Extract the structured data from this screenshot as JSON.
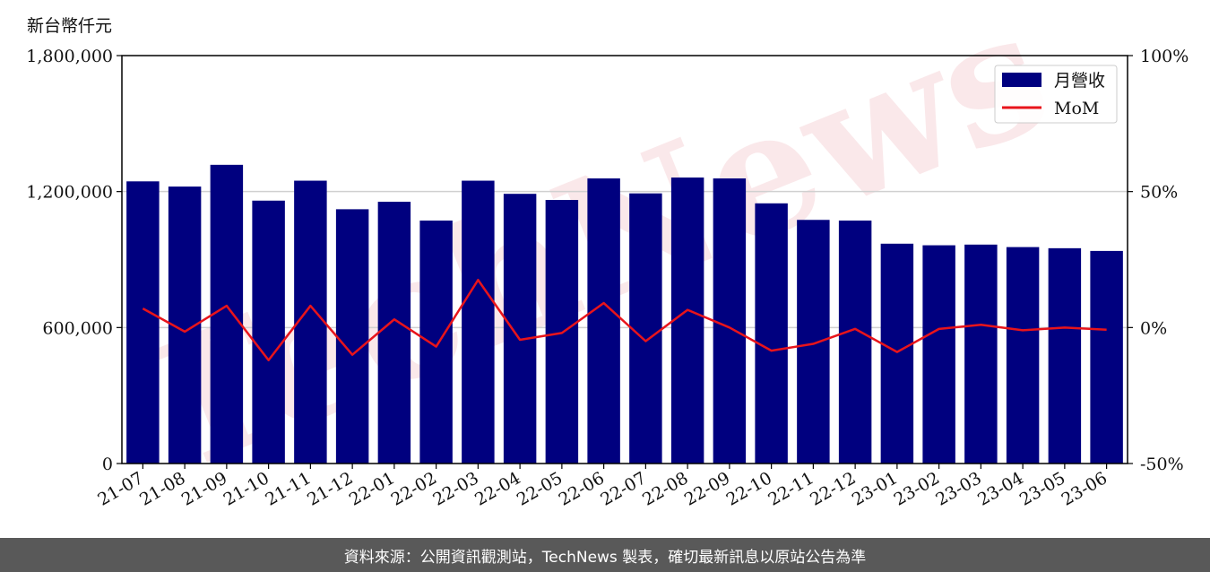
{
  "unit_label": "新台幣仟元",
  "footer": "資料來源：公開資訊觀測站，TechNews 製表，確切最新訊息以原站公告為準",
  "watermark": "TechNews",
  "colors": {
    "bar": "#00007f",
    "line": "#e8141b",
    "grid": "#d0d0d0",
    "footer_bg": "#595959",
    "watermark": "#f3cdd0"
  },
  "chart_data": {
    "type": "bar",
    "categories": [
      "21-07",
      "21-08",
      "21-09",
      "21-10",
      "21-11",
      "21-12",
      "22-01",
      "22-02",
      "22-03",
      "22-04",
      "22-05",
      "22-06",
      "22-07",
      "22-08",
      "22-09",
      "22-10",
      "22-11",
      "22-12",
      "23-01",
      "23-02",
      "23-03",
      "23-04",
      "23-05",
      "23-06"
    ],
    "series": [
      {
        "name": "月營收",
        "type": "bar",
        "axis": "left",
        "values": [
          1245000,
          1222000,
          1318000,
          1160000,
          1248000,
          1122000,
          1155000,
          1072000,
          1248000,
          1190000,
          1163000,
          1258000,
          1192000,
          1262000,
          1258000,
          1148000,
          1075000,
          1072000,
          970000,
          963000,
          966000,
          955000,
          950000,
          938000
        ]
      },
      {
        "name": "MoM",
        "type": "line",
        "axis": "right",
        "values": [
          7.0,
          -1.5,
          8.0,
          -12.0,
          8.0,
          -10.0,
          3.0,
          -7.0,
          17.5,
          -4.5,
          -2.0,
          9.0,
          -5.0,
          6.5,
          0.0,
          -8.5,
          -6.0,
          -0.5,
          -9.0,
          -0.5,
          1.0,
          -1.0,
          0.0,
          -0.8
        ]
      }
    ],
    "left_axis": {
      "min": 0,
      "max": 1800000,
      "ticks": [
        "0",
        "600,000",
        "1,200,000",
        "1,800,000"
      ]
    },
    "right_axis": {
      "min": -50,
      "max": 100,
      "ticks": [
        "-50%",
        "0%",
        "50%",
        "100%"
      ]
    },
    "legend": {
      "position": "top-right",
      "entries": [
        "月營收",
        "MoM"
      ]
    },
    "grid": "horizontal"
  }
}
